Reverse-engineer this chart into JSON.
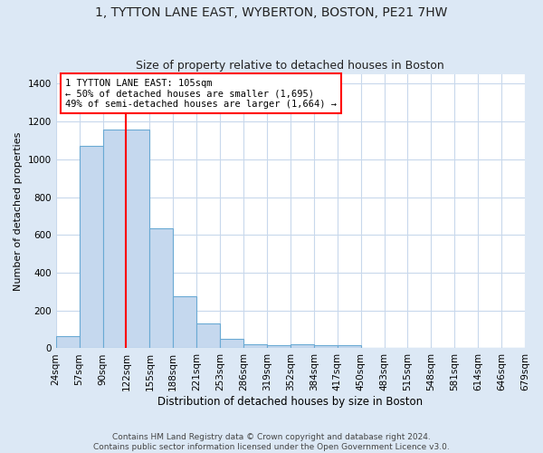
{
  "title": "1, TYTTON LANE EAST, WYBERTON, BOSTON, PE21 7HW",
  "subtitle": "Size of property relative to detached houses in Boston",
  "xlabel": "Distribution of detached houses by size in Boston",
  "ylabel": "Number of detached properties",
  "bar_values": [
    65,
    1070,
    1160,
    1160,
    635,
    275,
    130,
    48,
    20,
    15,
    20,
    15,
    15,
    0,
    0,
    0,
    0,
    0,
    0,
    0
  ],
  "bar_labels": [
    "24sqm",
    "57sqm",
    "90sqm",
    "122sqm",
    "155sqm",
    "188sqm",
    "221sqm",
    "253sqm",
    "286sqm",
    "319sqm",
    "352sqm",
    "384sqm",
    "417sqm",
    "450sqm",
    "483sqm",
    "515sqm",
    "548sqm",
    "581sqm",
    "614sqm",
    "646sqm",
    "679sqm"
  ],
  "bar_color": "#c5d8ee",
  "bar_edge_color": "#6aaad4",
  "annotation_text": "1 TYTTON LANE EAST: 105sqm\n← 50% of detached houses are smaller (1,695)\n49% of semi-detached houses are larger (1,664) →",
  "annotation_box_color": "white",
  "annotation_box_edge_color": "red",
  "red_line_color": "red",
  "ylim": [
    0,
    1450
  ],
  "yticks": [
    0,
    200,
    400,
    600,
    800,
    1000,
    1200,
    1400
  ],
  "footnote": "Contains HM Land Registry data © Crown copyright and database right 2024.\nContains public sector information licensed under the Open Government Licence v3.0.",
  "fig_background_color": "#dce8f5",
  "plot_background_color": "white",
  "grid_color": "#c8d8ec",
  "title_fontsize": 10,
  "subtitle_fontsize": 9,
  "ylabel_fontsize": 8,
  "xlabel_fontsize": 8.5,
  "tick_fontsize": 7.5,
  "annotation_fontsize": 7.5,
  "footnote_fontsize": 6.5,
  "red_line_bin_index": 3
}
